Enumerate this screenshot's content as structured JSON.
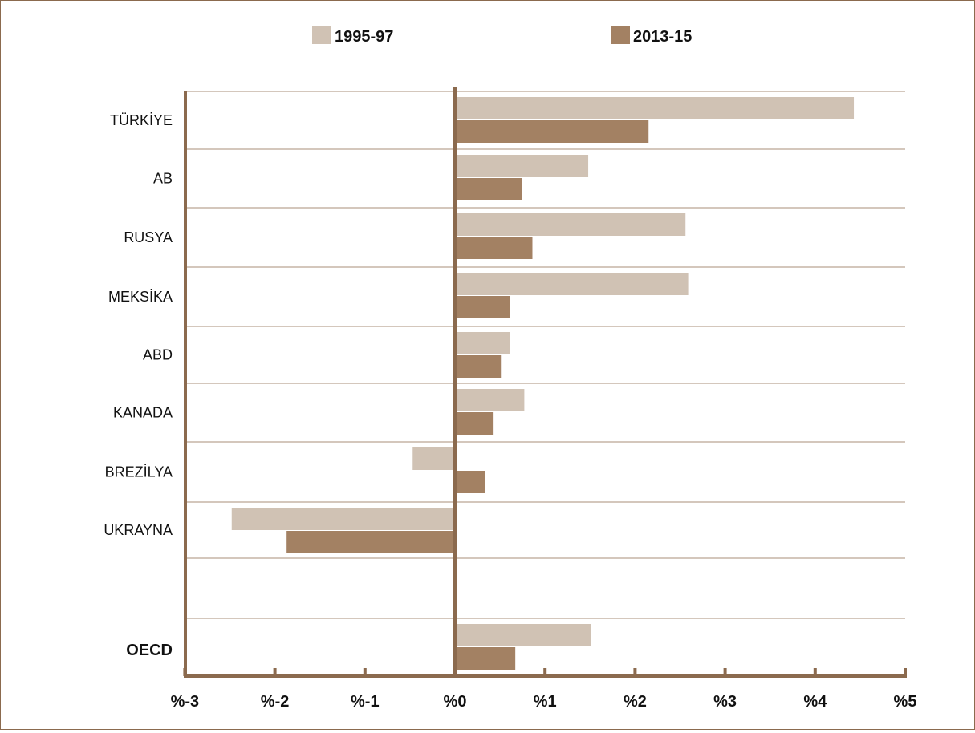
{
  "chart_data": {
    "type": "bar",
    "orientation": "horizontal",
    "title": "",
    "xlabel": "",
    "ylabel": "",
    "xlim": [
      -3,
      5
    ],
    "x_ticks": [
      -3,
      -2,
      -1,
      0,
      1,
      2,
      3,
      4,
      5
    ],
    "x_tick_labels": [
      "%-3",
      "%-2",
      "%-1",
      "%0",
      "%1",
      "%2",
      "%3",
      "%4",
      "%5"
    ],
    "categories": [
      "TÜRKİYE",
      "AB",
      "RUSYA",
      "MEKSİKA",
      "ABD",
      "KANADA",
      "BREZİLYA",
      "UKRAYNA",
      "",
      "OECD"
    ],
    "bold_categories": [
      "OECD"
    ],
    "series": [
      {
        "name": "1995-97",
        "color": "#d0c2b4",
        "values": [
          4.43,
          1.48,
          2.56,
          2.59,
          0.61,
          0.77,
          -0.47,
          -2.48,
          null,
          1.51
        ]
      },
      {
        "name": "2013-15",
        "color": "#a38163",
        "values": [
          2.15,
          0.74,
          0.86,
          0.61,
          0.51,
          0.42,
          0.33,
          -1.87,
          null,
          0.67
        ]
      }
    ],
    "legend_position": "top-center",
    "grid": "horizontal",
    "axis_color": "#8b6a4e"
  }
}
